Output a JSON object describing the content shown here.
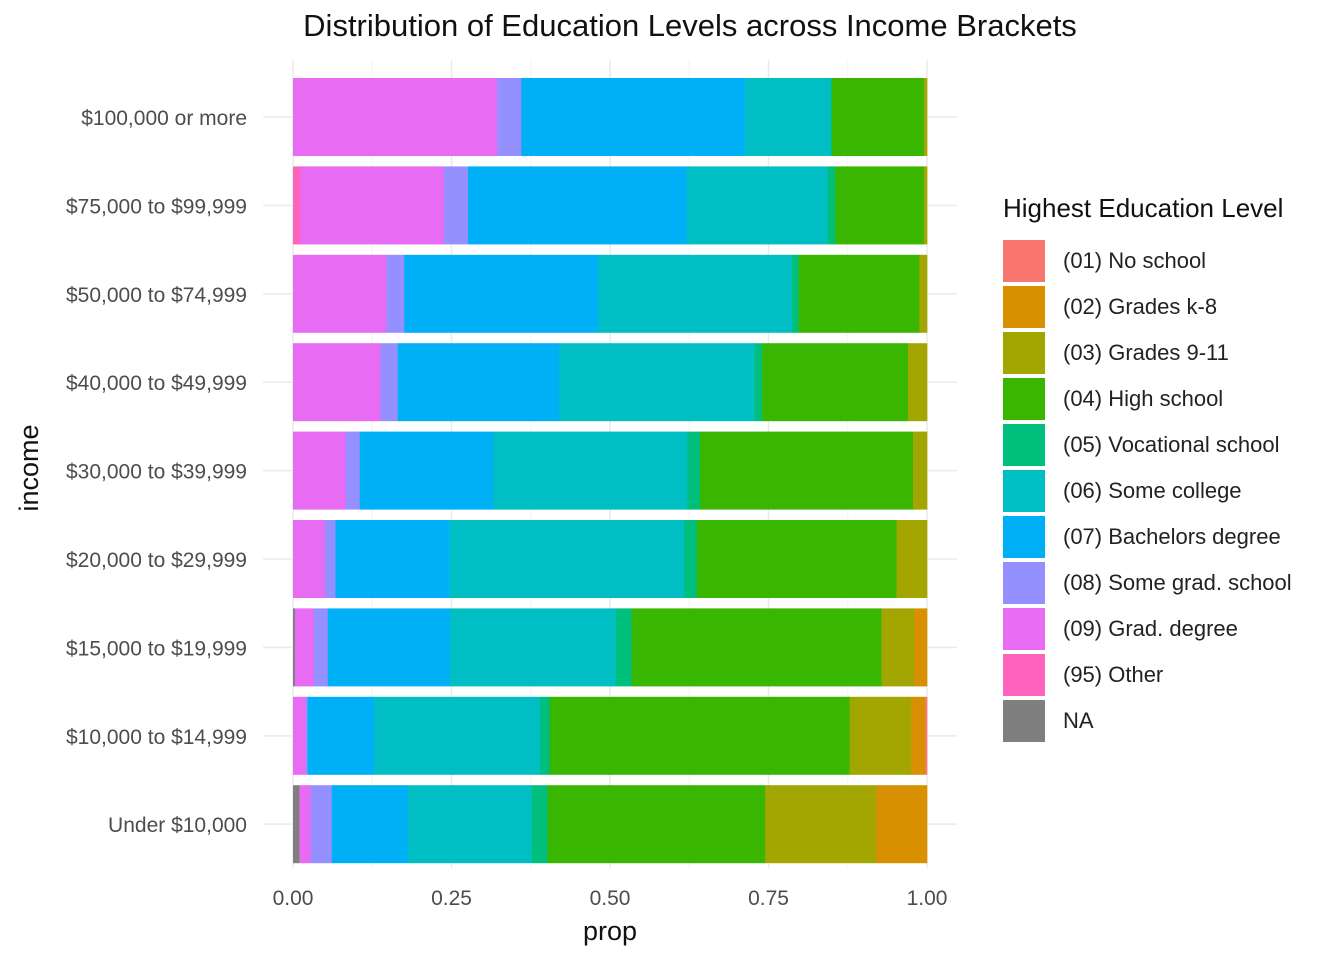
{
  "chart_data": {
    "type": "bar",
    "orientation": "horizontal",
    "stacked": "fill",
    "title": "Distribution of Education Levels across Income Brackets",
    "xlabel": "prop",
    "ylabel": "income",
    "xlim": [
      0,
      1
    ],
    "x_ticks": [
      "0.00",
      "0.25",
      "0.50",
      "0.75",
      "1.00"
    ],
    "x_tick_values": [
      0,
      0.25,
      0.5,
      0.75,
      1.0
    ],
    "grid": true,
    "legend_position": "right",
    "legend_title": "Highest Education Level",
    "categories": [
      "$100,000 or more",
      "$75,000 to $99,999",
      "$50,000 to $74,999",
      "$40,000 to $49,999",
      "$30,000 to $39,999",
      "$20,000 to $29,999",
      "$15,000 to $19,999",
      "$10,000 to $14,999",
      "Under $10,000"
    ],
    "series": [
      {
        "name": "(01) No school",
        "color": "#F8766D",
        "values": [
          0,
          0,
          0,
          0,
          0,
          0,
          0,
          0.003,
          0
        ]
      },
      {
        "name": "(02) Grades k-8",
        "color": "#D89000",
        "values": [
          0,
          0,
          0,
          0,
          0,
          0,
          0.02,
          0.022,
          0.08
        ]
      },
      {
        "name": "(03) Grades 9-11",
        "color": "#A3A500",
        "values": [
          0.005,
          0.005,
          0.012,
          0.03,
          0.022,
          0.048,
          0.052,
          0.097,
          0.175
        ]
      },
      {
        "name": "(04) High school",
        "color": "#39B600",
        "values": [
          0.145,
          0.14,
          0.19,
          0.23,
          0.335,
          0.315,
          0.395,
          0.473,
          0.343
        ]
      },
      {
        "name": "(05) Vocational school",
        "color": "#00BF7D",
        "values": [
          0.002,
          0.012,
          0.01,
          0.012,
          0.02,
          0.02,
          0.025,
          0.015,
          0.025
        ]
      },
      {
        "name": "(06) Some college",
        "color": "#00BFC4",
        "values": [
          0.135,
          0.222,
          0.305,
          0.308,
          0.305,
          0.37,
          0.262,
          0.262,
          0.195
        ]
      },
      {
        "name": "(07) Bachelors degree",
        "color": "#00B0F6",
        "values": [
          0.353,
          0.345,
          0.305,
          0.255,
          0.21,
          0.18,
          0.193,
          0.105,
          0.12
        ]
      },
      {
        "name": "(08) Some grad. school",
        "color": "#9590FF",
        "values": [
          0.038,
          0.038,
          0.028,
          0.027,
          0.022,
          0.017,
          0.022,
          0.003,
          0.033
        ]
      },
      {
        "name": "(09) Grad. degree",
        "color": "#E76BF3",
        "values": [
          0.322,
          0.226,
          0.147,
          0.138,
          0.083,
          0.05,
          0.03,
          0.02,
          0.018
        ]
      },
      {
        "name": "(95) Other",
        "color": "#FF62BC",
        "values": [
          0,
          0.012,
          0,
          0,
          0,
          0,
          0,
          0,
          0
        ]
      },
      {
        "name": "NA",
        "color": "#7F7F7F",
        "values": [
          0,
          0,
          0,
          0,
          0,
          0,
          0.003,
          0,
          0.01
        ]
      }
    ]
  }
}
